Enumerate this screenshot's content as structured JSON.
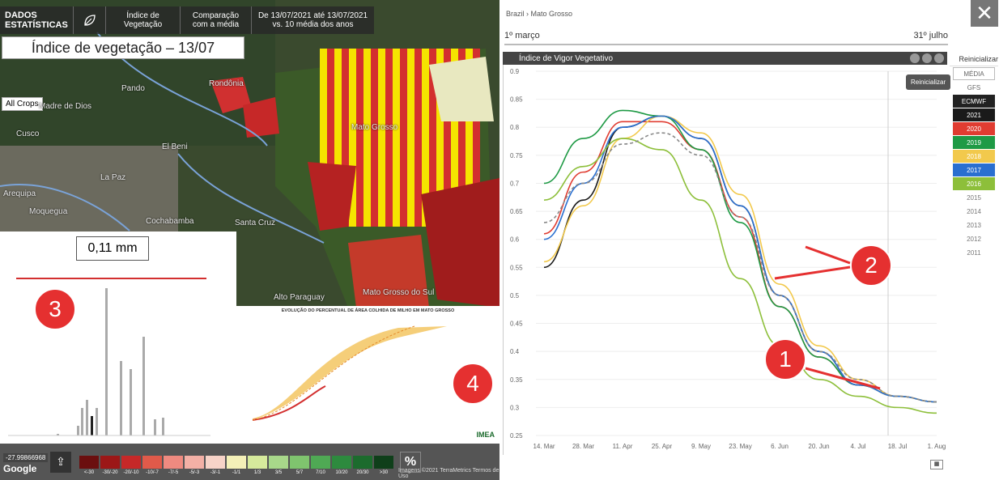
{
  "topbar": {
    "logo": "DADOS ESTATÍSTICAS",
    "indice": "Índice de Vegetação",
    "comparacao": "Comparação com a média",
    "periodo": "De 13/07/2021 até 13/07/2021 vs. 10 média dos anos"
  },
  "map": {
    "title": "Índice de vegetação – 13/07",
    "crops_button": "All Crops",
    "labels": [
      "Rondônia",
      "Madre de Dios",
      "Pando",
      "Cusco",
      "El Beni",
      "La Paz",
      "Arequipa",
      "Moquegua",
      "Cochabamba",
      "Santa Cruz",
      "Mato Grosso",
      "Mato Grosso do Sul",
      "Alto Paraguay"
    ],
    "coord": "-27.99866968",
    "google": "Google",
    "footer": "Imagens ©2021 TerraMetrics   Termos de Uso",
    "legend": [
      {
        "label": "<-30",
        "color": "#6b0f0f"
      },
      {
        "label": "-30/-20",
        "color": "#9c1717"
      },
      {
        "label": "-20/-10",
        "color": "#c62828"
      },
      {
        "label": "-10/-7",
        "color": "#e05a4a"
      },
      {
        "label": "-7/-5",
        "color": "#ef8a80"
      },
      {
        "label": "-5/-3",
        "color": "#f3b0a6"
      },
      {
        "label": "-3/-1",
        "color": "#f7d3c8"
      },
      {
        "label": "-1/1",
        "color": "#f4f0b8"
      },
      {
        "label": "1/3",
        "color": "#d6ea9c"
      },
      {
        "label": "3/5",
        "color": "#a8d88a"
      },
      {
        "label": "5/7",
        "color": "#7fc46e"
      },
      {
        "label": "7/10",
        "color": "#4fa954"
      },
      {
        "label": "10/20",
        "color": "#2d8a3e"
      },
      {
        "label": "20/30",
        "color": "#1c6b2d"
      },
      {
        "label": ">30",
        "color": "#0f3f1a"
      }
    ],
    "pct_button": "%"
  },
  "panel3": {
    "callout": "0,11 mm",
    "badge": "3"
  },
  "panel4": {
    "title": "EVOLUÇÃO DO PERCENTUAL DE ÁREA COLHIDA DE MILHO EM MATO GROSSO",
    "badge": "4",
    "logo": "IMEA"
  },
  "right": {
    "breadcrumb": "Brazil › Mato Grosso",
    "date_start": "1º março",
    "date_end": "31º julho",
    "chart_title": "Índice de Vigor Vegetativo",
    "reset": "Reinicializar",
    "reset_all": "Reinicializar",
    "years": [
      {
        "label": "MÉDIA",
        "bg": "#fff",
        "fg": "#666",
        "border": "#bbb"
      },
      {
        "label": "GFS",
        "bg": "#fff",
        "fg": "#666",
        "border": "#fff"
      },
      {
        "label": "ECMWF",
        "bg": "#222",
        "fg": "#fff",
        "border": "#222"
      },
      {
        "label": "2021",
        "bg": "#1a1a1a",
        "fg": "#fff",
        "border": "#1a1a1a"
      },
      {
        "label": "2020",
        "bg": "#e03c31",
        "fg": "#fff",
        "border": "#e03c31"
      },
      {
        "label": "2019",
        "bg": "#1f9a45",
        "fg": "#fff",
        "border": "#1f9a45"
      },
      {
        "label": "2018",
        "bg": "#f2c94c",
        "fg": "#fff",
        "border": "#f2c94c"
      },
      {
        "label": "2017",
        "bg": "#2a6fd0",
        "fg": "#fff",
        "border": "#2a6fd0"
      },
      {
        "label": "2016",
        "bg": "#8dbf3a",
        "fg": "#fff",
        "border": "#8dbf3a"
      },
      {
        "label": "2015",
        "bg": "#fff",
        "fg": "#777",
        "border": "#fff"
      },
      {
        "label": "2014",
        "bg": "#fff",
        "fg": "#777",
        "border": "#fff"
      },
      {
        "label": "2013",
        "bg": "#fff",
        "fg": "#777",
        "border": "#fff"
      },
      {
        "label": "2012",
        "bg": "#fff",
        "fg": "#777",
        "border": "#fff"
      },
      {
        "label": "2011",
        "bg": "#fff",
        "fg": "#777",
        "border": "#fff"
      }
    ],
    "badge1": "1",
    "badge2": "2"
  },
  "chart_data": {
    "type": "line",
    "title": "Índice de Vigor Vegetativo",
    "x": [
      "14. Mar",
      "28. Mar",
      "11. Apr",
      "25. Apr",
      "9. May",
      "23. May",
      "6. Jun",
      "20. Jun",
      "4. Jul",
      "18. Jul",
      "1. Aug"
    ],
    "ylim": [
      0.25,
      0.9
    ],
    "yticks": [
      0.25,
      0.3,
      0.35,
      0.4,
      0.45,
      0.5,
      0.55,
      0.6,
      0.65,
      0.7,
      0.75,
      0.8,
      0.85,
      0.9
    ],
    "series": [
      {
        "name": "2021",
        "color": "#1a1a1a",
        "values": [
          0.55,
          0.67,
          0.8,
          0.82,
          0.78,
          0.66,
          0.5,
          0.4,
          0.34,
          null,
          null
        ]
      },
      {
        "name": "2020",
        "color": "#e03c31",
        "values": [
          0.61,
          0.72,
          0.81,
          0.81,
          0.76,
          0.64,
          0.48,
          0.39,
          0.34,
          0.32,
          0.31
        ]
      },
      {
        "name": "2019",
        "color": "#1f9a45",
        "values": [
          0.7,
          0.78,
          0.83,
          0.82,
          0.76,
          0.63,
          0.48,
          0.39,
          0.34,
          0.32,
          0.31
        ]
      },
      {
        "name": "2018",
        "color": "#f2c94c",
        "values": [
          0.56,
          0.66,
          0.78,
          0.82,
          0.79,
          0.68,
          0.52,
          0.41,
          0.35,
          0.32,
          0.31
        ]
      },
      {
        "name": "2017",
        "color": "#2a6fd0",
        "values": [
          0.6,
          0.7,
          0.8,
          0.82,
          0.78,
          0.66,
          0.5,
          0.4,
          0.34,
          0.32,
          0.31
        ]
      },
      {
        "name": "2016",
        "color": "#8dbf3a",
        "values": [
          0.67,
          0.73,
          0.78,
          0.76,
          0.67,
          0.53,
          0.41,
          0.35,
          0.32,
          0.3,
          0.29
        ]
      },
      {
        "name": "MÉDIA",
        "color": "#888888",
        "values": [
          0.63,
          0.7,
          0.77,
          0.79,
          0.75,
          0.64,
          0.5,
          0.4,
          0.35,
          0.32,
          0.31
        ]
      }
    ]
  }
}
